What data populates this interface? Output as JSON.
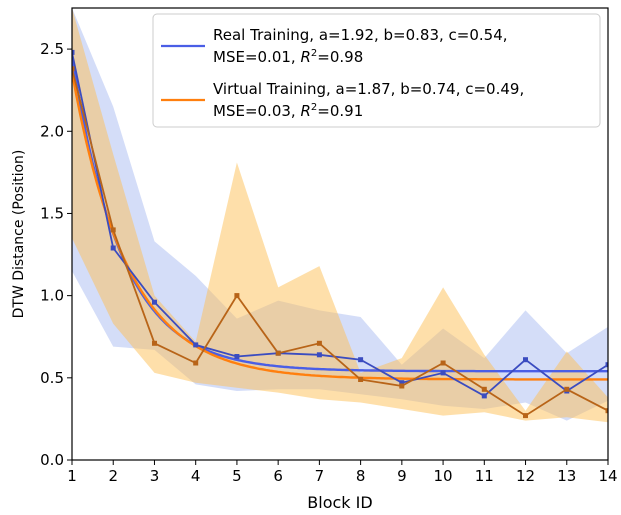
{
  "chart_data": {
    "type": "line",
    "xlabel": "Block ID",
    "ylabel": "DTW Distance (Position)",
    "xlim": [
      1,
      14
    ],
    "ylim": [
      0.0,
      2.75
    ],
    "xticks": [
      "1",
      "2",
      "3",
      "4",
      "5",
      "6",
      "7",
      "8",
      "9",
      "10",
      "11",
      "12",
      "13",
      "14"
    ],
    "yticks": [
      "0.0",
      "0.5",
      "1.0",
      "1.5",
      "2.0",
      "2.5"
    ],
    "grid": false,
    "legend_position": "top-right",
    "x": [
      1,
      2,
      3,
      4,
      5,
      6,
      7,
      8,
      9,
      10,
      11,
      12,
      13,
      14
    ],
    "series": [
      {
        "name": "Real Training, a=1.92, b=0.83, c=0.54, MSE=0.01, R²=0.98",
        "legend_line1": "Real Training, a=1.92, b=0.83, c=0.54,",
        "legend_line2_prefix": "MSE=0.01, ",
        "legend_line2_r2": "=0.98",
        "fit_params": {
          "a": 1.92,
          "b": 0.83,
          "c": 0.54
        },
        "color": "#3b4cc0",
        "fit_color": "#4a5ee6",
        "band_color": "#aabbf2",
        "values": [
          2.48,
          1.29,
          0.96,
          0.7,
          0.63,
          0.65,
          0.64,
          0.61,
          0.47,
          0.53,
          0.39,
          0.61,
          0.42,
          0.58
        ],
        "upper": [
          2.75,
          2.15,
          1.33,
          1.12,
          0.86,
          0.97,
          0.91,
          0.87,
          0.58,
          0.8,
          0.62,
          0.91,
          0.65,
          0.81
        ],
        "lower": [
          1.15,
          0.69,
          0.67,
          0.46,
          0.42,
          0.43,
          0.43,
          0.4,
          0.37,
          0.33,
          0.31,
          0.35,
          0.24,
          0.36
        ]
      },
      {
        "name": "Virtual Training, a=1.87, b=0.74, c=0.49, MSE=0.03, R²=0.91",
        "legend_line1": "Virtual Training, a=1.87, b=0.74, c=0.49,",
        "legend_line2_prefix": "MSE=0.03, ",
        "legend_line2_r2": "=0.91",
        "fit_params": {
          "a": 1.87,
          "b": 0.74,
          "c": 0.49
        },
        "color": "#b86418",
        "fit_color": "#ff7f0e",
        "band_color": "#fdbf55",
        "values": [
          2.38,
          1.4,
          0.71,
          0.59,
          1.0,
          0.65,
          0.71,
          0.49,
          0.45,
          0.59,
          0.43,
          0.27,
          0.43,
          0.3
        ],
        "upper": [
          2.75,
          1.86,
          1.0,
          0.72,
          1.81,
          1.05,
          1.18,
          0.53,
          0.62,
          1.05,
          0.64,
          0.3,
          0.66,
          0.38
        ],
        "lower": [
          1.35,
          0.83,
          0.53,
          0.47,
          0.44,
          0.41,
          0.37,
          0.35,
          0.31,
          0.27,
          0.29,
          0.24,
          0.26,
          0.23
        ]
      }
    ]
  }
}
